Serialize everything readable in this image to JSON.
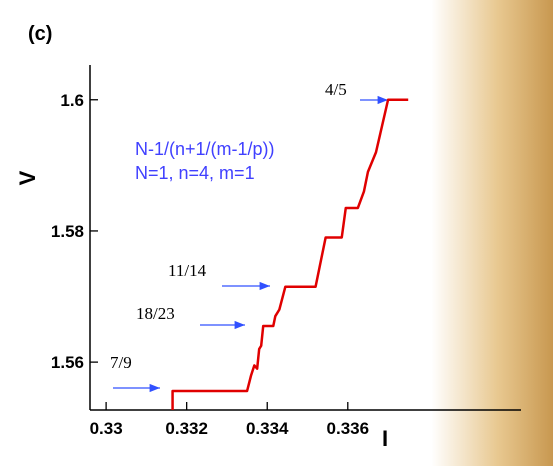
{
  "chart_data": {
    "type": "line",
    "panel_label": "(c)",
    "x_label": "I",
    "y_label": "V",
    "formula": [
      "N-1/(n+1/(m-1/p))",
      "N=1, n=4, m=1"
    ],
    "annotations": [
      "4/5",
      "11/14",
      "18/23",
      "7/9"
    ],
    "xlim": [
      0.3296,
      0.3403
    ],
    "ylim": [
      1.5527,
      1.6053
    ],
    "xticks": [
      0.33,
      0.332,
      0.334,
      0.336
    ],
    "yticks": [
      1.56,
      1.58,
      1.6
    ],
    "series": [
      {
        "color": "#e00000",
        "x": [
          0.33165,
          0.33165,
          0.3335,
          0.3336,
          0.33368,
          0.33375,
          0.3338,
          0.33385,
          0.3339,
          0.33415,
          0.3342,
          0.3343,
          0.33445,
          0.3352,
          0.3353,
          0.33545,
          0.33585,
          0.33595,
          0.33625,
          0.3364,
          0.3365,
          0.3367,
          0.33685,
          0.337,
          0.3375
        ],
        "values": [
          1.5527,
          1.5556,
          1.5556,
          1.558,
          1.5595,
          1.559,
          1.562,
          1.5625,
          1.5655,
          1.5655,
          1.567,
          1.568,
          1.5715,
          1.5715,
          1.5745,
          1.579,
          1.579,
          1.5835,
          1.5835,
          1.586,
          1.589,
          1.592,
          1.596,
          1.6,
          1.6
        ]
      }
    ]
  }
}
